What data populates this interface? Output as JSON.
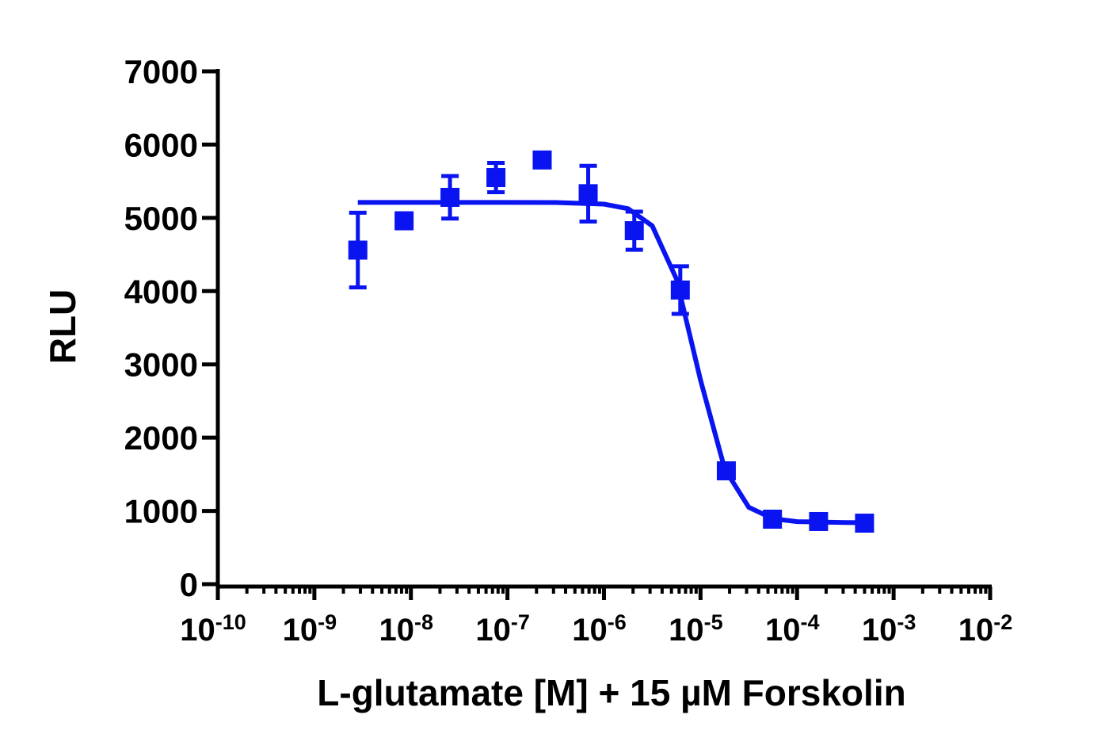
{
  "chart_data": {
    "type": "scatter",
    "x_label": "L-glutamate [M] + 15  µM Forskolin",
    "y_label": "RLU",
    "xlog": true,
    "xlim": [
      1e-10,
      0.01
    ],
    "xticks": [
      {
        "value": 1e-10,
        "label": "10",
        "exponent": "-10"
      },
      {
        "value": 1e-09,
        "label": "10",
        "exponent": "-9"
      },
      {
        "value": 1e-08,
        "label": "10",
        "exponent": "-8"
      },
      {
        "value": 1e-07,
        "label": "10",
        "exponent": "-7"
      },
      {
        "value": 1e-06,
        "label": "10",
        "exponent": "-6"
      },
      {
        "value": 1e-05,
        "label": "10",
        "exponent": "-5"
      },
      {
        "value": 0.0001,
        "label": "10",
        "exponent": "-4"
      },
      {
        "value": 0.001,
        "label": "10",
        "exponent": "-3"
      },
      {
        "value": 0.01,
        "label": "10",
        "exponent": "-2"
      }
    ],
    "minor_ticks": true,
    "ylim": [
      0,
      7000
    ],
    "yticks": [
      0,
      1000,
      2000,
      3000,
      4000,
      5000,
      6000,
      7000
    ],
    "color": "#0a14f0",
    "points": {
      "x": [
        2.82e-09,
        8.5e-09,
        2.54e-08,
        7.6e-08,
        2.29e-07,
        6.86e-07,
        2.06e-06,
        6.17e-06,
        1.85e-05,
        5.56e-05,
        0.000167,
        0.0005
      ],
      "values": [
        4560,
        4960,
        5280,
        5550,
        5790,
        5330,
        4825,
        4015,
        1547,
        887,
        855,
        833
      ],
      "errors": [
        510,
        100,
        290,
        200,
        0,
        380,
        260,
        325,
        0,
        0,
        0,
        0
      ]
    },
    "curve": {
      "x": [
        2.82e-09,
        1e-08,
        3.16e-08,
        1e-07,
        3.16e-07,
        1e-06,
        1.78e-06,
        3.16e-06,
        5.62e-06,
        1e-05,
        1.78e-05,
        3.16e-05,
        5.62e-05,
        0.0001,
        0.000316,
        0.00048
      ],
      "values": [
        5210,
        5210,
        5210,
        5210,
        5209,
        5188,
        5125,
        4891,
        4168,
        2785,
        1572,
        1050,
        895,
        854,
        841,
        840
      ]
    }
  }
}
